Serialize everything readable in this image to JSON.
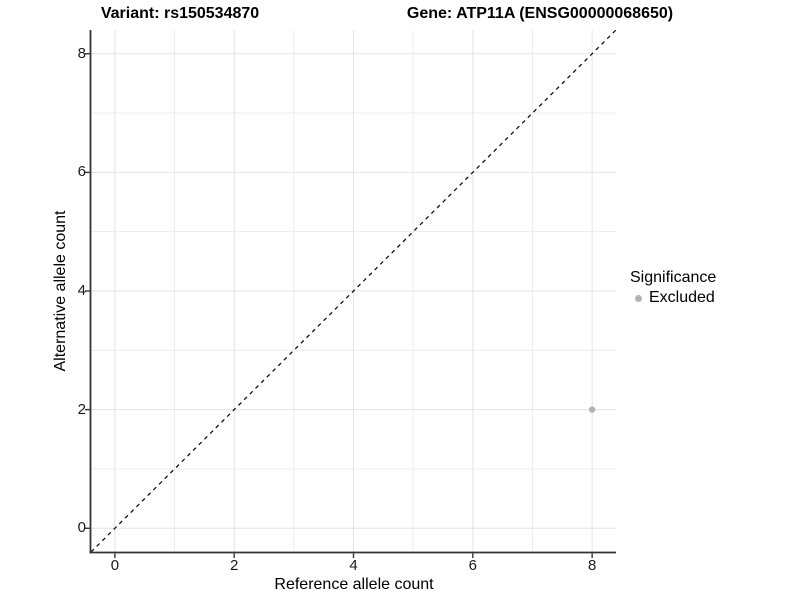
{
  "header": {
    "title_left": "Variant: rs150534870",
    "title_right": "Gene: ATP11A (ENSG00000068650)"
  },
  "chart_data": {
    "type": "scatter",
    "title": "Variant: rs150534870   Gene: ATP11A (ENSG00000068650)",
    "xlabel": "Reference allele count",
    "ylabel": "Alternative allele count",
    "xlim": [
      -0.4,
      8.4
    ],
    "ylim": [
      -0.4,
      8.4
    ],
    "x_major_ticks": [
      0,
      2,
      4,
      6,
      8
    ],
    "y_major_ticks": [
      0,
      2,
      4,
      6,
      8
    ],
    "x_minor_ticks": [
      1,
      3,
      5,
      7
    ],
    "y_minor_ticks": [
      1,
      3,
      5,
      7
    ],
    "grid": "major+minor, light gray on white",
    "series": [
      {
        "name": "Excluded",
        "color": "#b3b3b3",
        "points": [
          {
            "x": 8,
            "y": 2
          }
        ]
      }
    ],
    "reference_line": {
      "equation": "y = x",
      "style": "dashed",
      "color": "#000000"
    },
    "legend": {
      "title": "Significance",
      "position": "right",
      "entries": [
        {
          "label": "Excluded",
          "color": "#b3b3b3"
        }
      ]
    },
    "colors": {
      "background": "#ffffff",
      "grid_major": "#e3e3e3",
      "grid_minor": "#ededed",
      "axis_line": "#333333",
      "tick_mark": "#333333",
      "tick_label": "#1a1a1a",
      "point": "#b3b3b3"
    }
  }
}
